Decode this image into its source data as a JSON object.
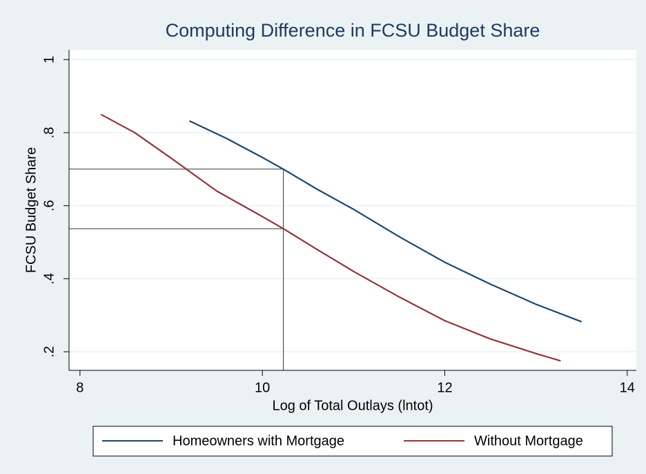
{
  "chart_data": {
    "type": "line",
    "title": "Computing Difference in FCSU Budget Share",
    "x_label": "Log of Total Outlays (lntot)",
    "y_label": "FCSU Budget Share",
    "xlim": [
      7.88,
      14.1
    ],
    "ylim": [
      0.149,
      1.027
    ],
    "xticks": [
      8,
      10,
      12,
      14
    ],
    "yticks": [
      {
        "value": 0.2,
        "label": ".2"
      },
      {
        "value": 0.4,
        "label": ".4"
      },
      {
        "value": 0.6,
        "label": ".6"
      },
      {
        "value": 0.8,
        "label": ".8"
      },
      1
    ],
    "grid": true,
    "legend": "bottom",
    "reference_lines": {
      "x": 10.23,
      "y": [
        0.7,
        0.537
      ]
    },
    "series": [
      {
        "name": "Homeowners with Mortgage",
        "color": "#1a476f",
        "x": [
          9.2,
          9.6,
          10,
          10.23,
          10.6,
          11,
          11.5,
          12,
          12.5,
          13,
          13.5
        ],
        "values": [
          0.832,
          0.785,
          0.732,
          0.7,
          0.645,
          0.59,
          0.515,
          0.445,
          0.385,
          0.33,
          0.282
        ]
      },
      {
        "name": "Without Mortgage",
        "color": "#90353b",
        "x": [
          8.23,
          8.6,
          9,
          9.5,
          10,
          10.23,
          10.6,
          11,
          11.5,
          12,
          12.5,
          13,
          13.27
        ],
        "values": [
          0.85,
          0.8,
          0.73,
          0.64,
          0.57,
          0.537,
          0.48,
          0.42,
          0.35,
          0.285,
          0.235,
          0.195,
          0.175
        ]
      }
    ]
  }
}
